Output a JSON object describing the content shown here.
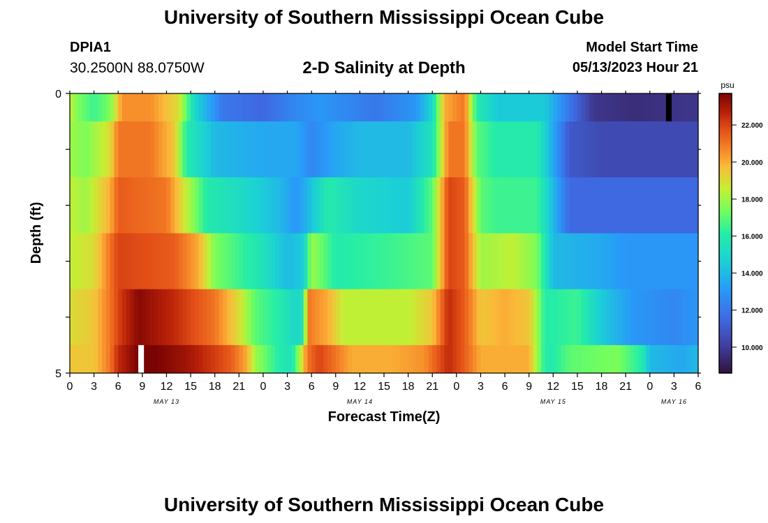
{
  "header": {
    "title": "University of Southern Mississippi Ocean Cube",
    "footer_title": "University of Southern Mississippi Ocean Cube",
    "station_id": "DPIA1",
    "station_coords": "30.2500N  88.0750W",
    "chart_title": "2-D Salinity at Depth",
    "start_label": "Model Start Time",
    "start_value": "05/13/2023 Hour 21"
  },
  "chart_data": {
    "type": "heatmap",
    "title": "2-D Salinity at Depth",
    "xlabel": "Forecast Time(Z)",
    "ylabel": "Depth (ft)",
    "colorbar_unit": "psu",
    "colorbar_ticks": [
      "22.000",
      "20.000",
      "18.000",
      "16.000",
      "14.000",
      "12.000",
      "10.000"
    ],
    "colorbar_tick_values": [
      22,
      20,
      18,
      16,
      14,
      12,
      10
    ],
    "colorbar_range": [
      8.6,
      23.7
    ],
    "x_range_hours": [
      0,
      78
    ],
    "x_tick_labels": [
      "0",
      "3",
      "6",
      "9",
      "12",
      "15",
      "18",
      "21",
      "0",
      "3",
      "6",
      "9",
      "12",
      "15",
      "18",
      "21",
      "0",
      "3",
      "6",
      "9",
      "12",
      "15",
      "18",
      "21",
      "0",
      "3",
      "6"
    ],
    "date_labels": [
      {
        "label": "MAY 13",
        "hour": 12
      },
      {
        "label": "MAY 14",
        "hour": 36
      },
      {
        "label": "MAY 15",
        "hour": 60
      },
      {
        "label": "MAY 16",
        "hour": 75
      }
    ],
    "y_tick_labels": [
      "0",
      "5"
    ],
    "y_range": [
      0,
      5
    ],
    "layers": [
      {
        "depth_top": 0.0,
        "depth_bottom": 0.5,
        "keys": [
          [
            0,
            18.5
          ],
          [
            1,
            17.5
          ],
          [
            3,
            16.5
          ],
          [
            5,
            17.5
          ],
          [
            6.5,
            20.5
          ],
          [
            10,
            20.5
          ],
          [
            13.5,
            19.0
          ],
          [
            15.5,
            15.0
          ],
          [
            19,
            12.0
          ],
          [
            24,
            11.5
          ],
          [
            28,
            12.5
          ],
          [
            31,
            13.0
          ],
          [
            38,
            12.0
          ],
          [
            43,
            13.0
          ],
          [
            45,
            15.0
          ],
          [
            46.5,
            20.0
          ],
          [
            49,
            21.0
          ],
          [
            50.5,
            16.0
          ],
          [
            53,
            14.5
          ],
          [
            59,
            14.5
          ],
          [
            62,
            12.0
          ],
          [
            65,
            9.8
          ],
          [
            70,
            9.5
          ],
          [
            78,
            9.8
          ]
        ]
      },
      {
        "depth_top": 0.5,
        "depth_bottom": 1.5,
        "keys": [
          [
            0,
            18.0
          ],
          [
            2,
            17.5
          ],
          [
            5,
            19.0
          ],
          [
            6,
            21.0
          ],
          [
            10,
            21.0
          ],
          [
            13,
            19.5
          ],
          [
            14.5,
            16.0
          ],
          [
            18,
            14.0
          ],
          [
            24,
            13.5
          ],
          [
            28,
            13.5
          ],
          [
            30,
            12.5
          ],
          [
            33,
            13.5
          ],
          [
            36,
            14.0
          ],
          [
            42,
            14.0
          ],
          [
            45,
            15.5
          ],
          [
            47,
            21.0
          ],
          [
            49,
            21.0
          ],
          [
            50.5,
            17.0
          ],
          [
            53,
            16.0
          ],
          [
            58,
            16.0
          ],
          [
            62,
            11.0
          ],
          [
            66,
            10.5
          ],
          [
            78,
            10.5
          ]
        ]
      },
      {
        "depth_top": 1.5,
        "depth_bottom": 2.5,
        "keys": [
          [
            0,
            18.5
          ],
          [
            2,
            18.0
          ],
          [
            5,
            20.0
          ],
          [
            6,
            21.5
          ],
          [
            12,
            21.0
          ],
          [
            15,
            18.0
          ],
          [
            17,
            16.0
          ],
          [
            22,
            15.0
          ],
          [
            26,
            14.0
          ],
          [
            28,
            13.0
          ],
          [
            29,
            13.5
          ],
          [
            32,
            16.0
          ],
          [
            36,
            15.0
          ],
          [
            42,
            14.5
          ],
          [
            45,
            17.0
          ],
          [
            47,
            22.0
          ],
          [
            49,
            21.5
          ],
          [
            51,
            17.0
          ],
          [
            53,
            16.5
          ],
          [
            58,
            16.5
          ],
          [
            62,
            11.5
          ],
          [
            78,
            11.5
          ]
        ]
      },
      {
        "depth_top": 2.5,
        "depth_bottom": 3.5,
        "keys": [
          [
            0,
            18.5
          ],
          [
            3,
            19.0
          ],
          [
            5,
            21.0
          ],
          [
            6,
            22.0
          ],
          [
            13,
            21.5
          ],
          [
            16,
            20.0
          ],
          [
            18,
            17.5
          ],
          [
            21,
            16.5
          ],
          [
            24,
            15.5
          ],
          [
            27,
            14.0
          ],
          [
            29,
            14.5
          ],
          [
            30,
            18.0
          ],
          [
            33,
            16.0
          ],
          [
            40,
            16.5
          ],
          [
            45,
            17.0
          ],
          [
            47,
            22.0
          ],
          [
            49,
            21.5
          ],
          [
            51,
            18.0
          ],
          [
            55,
            18.5
          ],
          [
            58,
            17.5
          ],
          [
            60,
            14.0
          ],
          [
            66,
            13.5
          ],
          [
            69,
            13.0
          ],
          [
            78,
            13.0
          ]
        ]
      },
      {
        "depth_top": 3.5,
        "depth_bottom": 4.5,
        "keys": [
          [
            0,
            19.0
          ],
          [
            3,
            19.5
          ],
          [
            5,
            21.0
          ],
          [
            6,
            22.0
          ],
          [
            8.5,
            23.5
          ],
          [
            13,
            22.5
          ],
          [
            18,
            21.0
          ],
          [
            21,
            19.0
          ],
          [
            23,
            17.0
          ],
          [
            26,
            16.0
          ],
          [
            28,
            15.0
          ],
          [
            29,
            15.5
          ],
          [
            29.5,
            21.0
          ],
          [
            32,
            20.0
          ],
          [
            34,
            18.5
          ],
          [
            42,
            18.5
          ],
          [
            45,
            19.5
          ],
          [
            47,
            22.5
          ],
          [
            49,
            21.5
          ],
          [
            51,
            19.5
          ],
          [
            54,
            20.0
          ],
          [
            57,
            19.5
          ],
          [
            58,
            18.0
          ],
          [
            59,
            16.0
          ],
          [
            63,
            16.5
          ],
          [
            66,
            14.5
          ],
          [
            70,
            13.0
          ],
          [
            75,
            12.5
          ],
          [
            78,
            13.0
          ]
        ]
      },
      {
        "depth_top": 4.5,
        "depth_bottom": 5.0,
        "keys": [
          [
            0,
            19.5
          ],
          [
            3,
            19.5
          ],
          [
            5,
            21.0
          ],
          [
            6,
            22.5
          ],
          [
            9,
            24.0
          ],
          [
            15,
            23.0
          ],
          [
            20,
            21.5
          ],
          [
            22,
            20.0
          ],
          [
            23,
            18.0
          ],
          [
            26,
            16.0
          ],
          [
            27.5,
            15.5
          ],
          [
            28.5,
            18.0
          ],
          [
            29.5,
            21.0
          ],
          [
            31,
            22.0
          ],
          [
            35,
            20.0
          ],
          [
            40,
            20.0
          ],
          [
            44,
            20.5
          ],
          [
            47,
            22.5
          ],
          [
            49,
            21.5
          ],
          [
            51,
            20.0
          ],
          [
            55,
            20.0
          ],
          [
            57,
            20.0
          ],
          [
            58,
            18.0
          ],
          [
            59,
            16.0
          ],
          [
            60,
            16.0
          ],
          [
            62,
            17.0
          ],
          [
            68,
            17.5
          ],
          [
            71,
            16.0
          ],
          [
            72,
            14.0
          ],
          [
            76,
            13.5
          ],
          [
            78,
            14.0
          ]
        ]
      }
    ],
    "markers": [
      {
        "label": "white",
        "layer": 5,
        "hour_start": 8.5,
        "hour_end": 9.2,
        "color": "#ffffff"
      },
      {
        "label": "black",
        "layer": 0,
        "hour_start": 74.0,
        "hour_end": 74.7,
        "color": "#000000"
      }
    ]
  }
}
